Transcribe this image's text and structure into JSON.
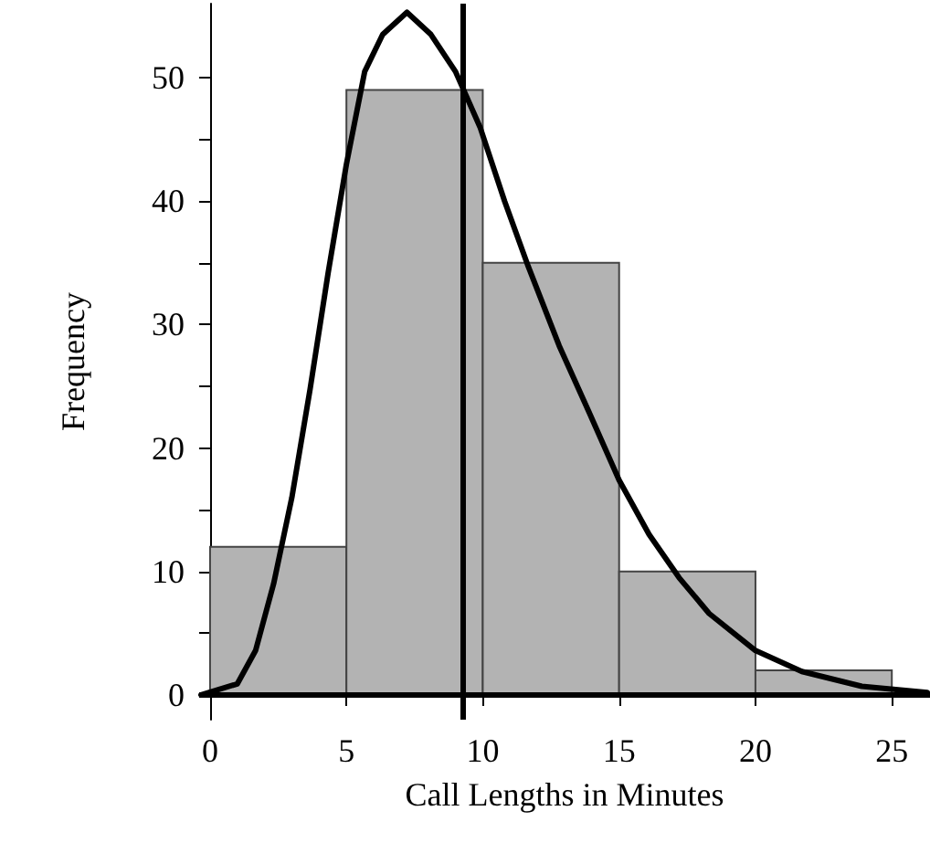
{
  "chart_data": {
    "type": "histogram",
    "xlabel": "Call Lengths in Minutes",
    "ylabel": "Frequency",
    "bins": [
      0,
      5,
      10,
      15,
      20,
      25
    ],
    "values": [
      12,
      49,
      35,
      10,
      2
    ],
    "color": "#b3b3b3",
    "series": [
      {
        "type": "line",
        "color": "#000000",
        "x": [
          -0.33,
          1.0,
          1.67,
          2.33,
          3.0,
          3.67,
          4.33,
          5.0,
          5.67,
          6.33,
          7.22,
          8.1,
          9.0,
          9.9,
          10.8,
          11.67,
          12.8,
          13.9,
          15,
          16.1,
          17.2,
          18.3,
          20,
          21.7,
          23.9,
          26.3
        ],
        "values": [
          0,
          0.9,
          3.6,
          9,
          16,
          24.8,
          34.2,
          43,
          50.5,
          53.5,
          55.3,
          53.5,
          50.5,
          46,
          40,
          34.7,
          28.3,
          22.9,
          17.4,
          13,
          9.5,
          6.6,
          3.6,
          1.9,
          0.7,
          0.2
        ]
      }
    ],
    "ref_lines": [
      {
        "axis": "x",
        "value": 9.29,
        "color": "#000000"
      },
      {
        "axis": "y",
        "value": 0,
        "color": "#000000"
      }
    ],
    "xlim": [
      -0.4,
      26.4
    ],
    "xticks": [
      0,
      5,
      10,
      15,
      20,
      25
    ],
    "ylim": [
      -2,
      56
    ],
    "yticks": [
      0,
      {
        "value": 5,
        "label": null
      },
      10,
      {
        "value": 15,
        "label": null
      },
      20,
      {
        "value": 25,
        "label": null
      },
      30,
      {
        "value": 35,
        "label": null
      },
      40,
      {
        "value": 45,
        "label": null
      },
      50
    ],
    "marker": "none",
    "line_style": "solid"
  }
}
